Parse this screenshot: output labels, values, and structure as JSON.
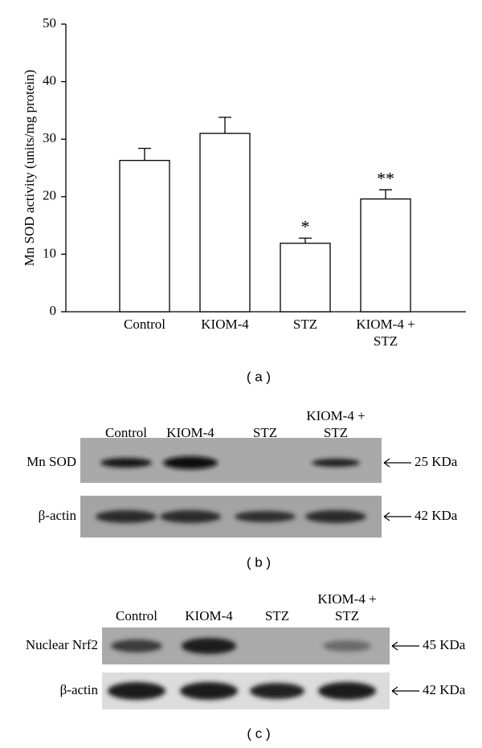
{
  "chart_data": {
    "type": "bar",
    "ylabel": "Mn SOD activity (units/mg protein)",
    "categories": [
      "Control",
      "KIOM-4",
      "STZ",
      "KIOM-4 +\nSTZ"
    ],
    "values": [
      26.3,
      31,
      11.9,
      19.6
    ],
    "errors": [
      2.1,
      2.8,
      0.9,
      1.6
    ],
    "annotations": [
      null,
      null,
      "*",
      "**"
    ],
    "color": "#ffffff",
    "ylim": [
      0,
      50
    ],
    "yticks": [
      0,
      10,
      20,
      30,
      40,
      50
    ],
    "grid": false,
    "panel_label": "( a )"
  },
  "blot_b": {
    "panel_label": "( b )",
    "lanes": [
      "Control",
      "KIOM-4",
      "STZ",
      "KIOM-4 +\nSTZ"
    ],
    "rows": [
      {
        "label": "Mn SOD",
        "size": "25 KDa"
      },
      {
        "label": "β-actin",
        "size": "42 KDa"
      }
    ]
  },
  "blot_c": {
    "panel_label": "( c )",
    "lanes": [
      "Control",
      "KIOM-4",
      "STZ",
      "KIOM-4 +\nSTZ"
    ],
    "rows": [
      {
        "label": "Nuclear Nrf2",
        "size": "45 KDa"
      },
      {
        "label": "β-actin",
        "size": "42 KDa"
      }
    ]
  }
}
